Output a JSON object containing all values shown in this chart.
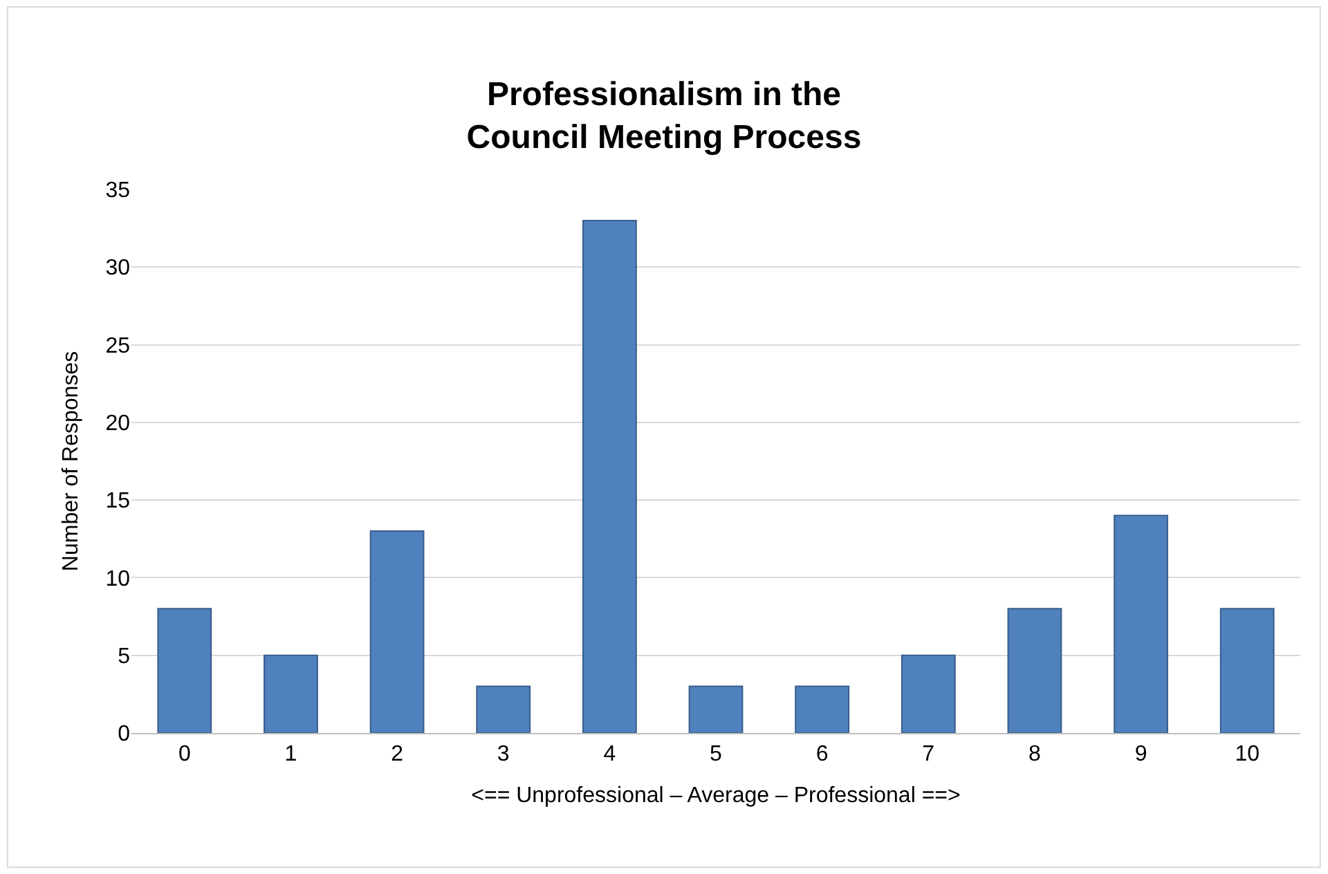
{
  "chart_data": {
    "type": "bar",
    "title": "Professionalism in the\nCouncil Meeting Process",
    "xlabel": "<== Unprofessional – Average – Professional ==>",
    "ylabel": "Number of Responses",
    "categories": [
      "0",
      "1",
      "2",
      "3",
      "4",
      "5",
      "6",
      "7",
      "8",
      "9",
      "10"
    ],
    "values": [
      8,
      5,
      13,
      3,
      33,
      3,
      3,
      5,
      8,
      14,
      8
    ],
    "color": "#4f81bd",
    "ylim": [
      0,
      35
    ],
    "yticks": [
      0,
      5,
      10,
      15,
      20,
      25,
      30,
      35
    ],
    "grid": "y"
  }
}
